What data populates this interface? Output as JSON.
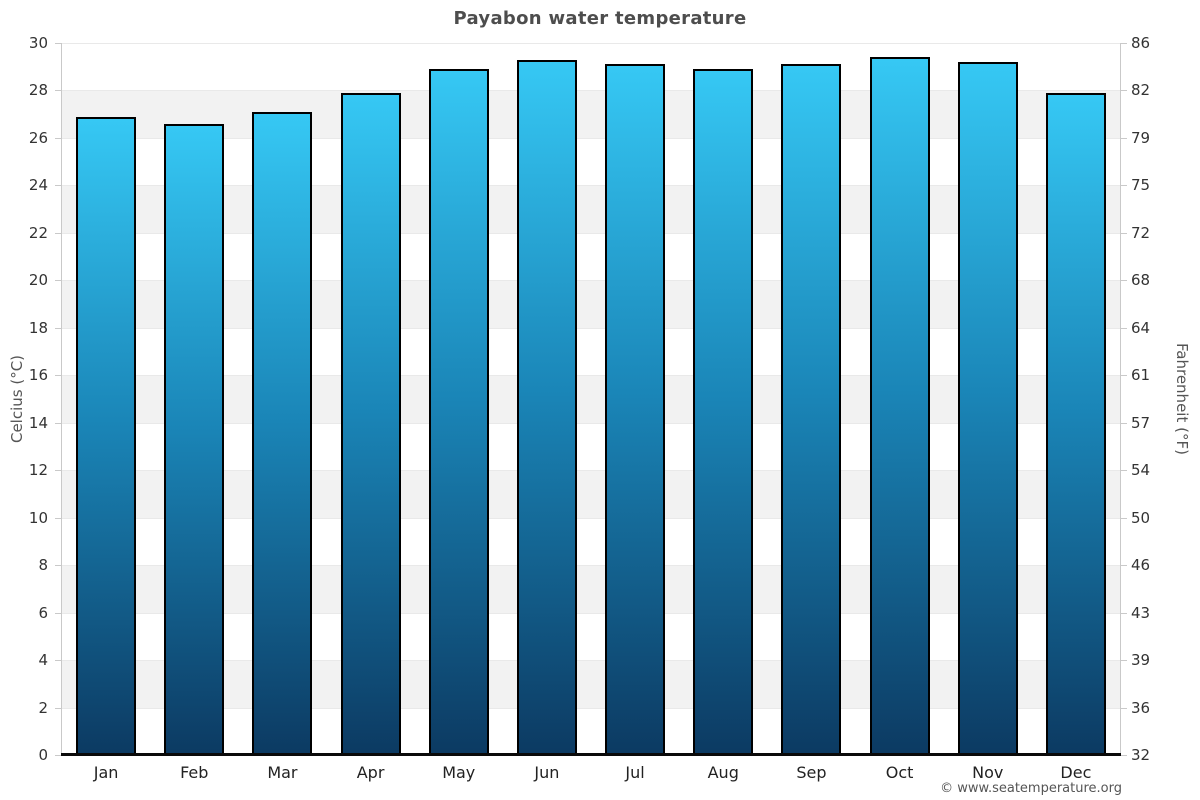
{
  "title": "Payabon water temperature",
  "footer": {
    "credit": "© www.seatemperature.org"
  },
  "chart_data": {
    "type": "bar",
    "title": "Payabon water temperature",
    "categories": [
      "Jan",
      "Feb",
      "Mar",
      "Apr",
      "May",
      "Jun",
      "Jul",
      "Aug",
      "Sep",
      "Oct",
      "Nov",
      "Dec"
    ],
    "values": [
      26.9,
      26.6,
      27.1,
      27.9,
      28.9,
      29.3,
      29.1,
      28.9,
      29.1,
      29.4,
      29.2,
      27.9
    ],
    "ylabel": "Celcius (°C)",
    "y2label": "Fahrenheit (°F)",
    "ylim": [
      0,
      30
    ],
    "yticks": [
      0,
      2,
      4,
      6,
      8,
      10,
      12,
      14,
      16,
      18,
      20,
      22,
      24,
      26,
      28,
      30
    ],
    "y2ticks": [
      32,
      36,
      39,
      43,
      46,
      50,
      54,
      57,
      61,
      64,
      68,
      72,
      75,
      79,
      82,
      86
    ],
    "grid": "alternating horizontal gray bands every 2°C",
    "legend": false,
    "colors": {
      "bar_gradient_top": "#36c8f4",
      "bar_gradient_mid": "#1a85b7",
      "bar_gradient_bottom": "#0c3a62",
      "bar_border": "#000000",
      "band": "#f2f2f2",
      "gridline": "#e9e9e9",
      "axis_line": "#c9c9c9",
      "x_axis_line": "#0a0a0a",
      "title_text": "#4d4d4d",
      "tick_text": "#333333"
    }
  }
}
